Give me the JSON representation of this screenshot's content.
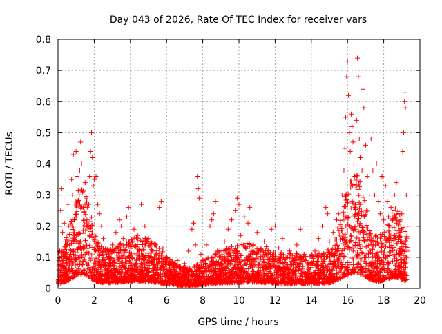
{
  "chart_data": {
    "type": "scatter",
    "title": "Day 043 of 2026, Rate Of TEC Index for receiver vars",
    "xlabel": "GPS time / hours",
    "ylabel": "ROTI / TECUs",
    "xlim": [
      0,
      20
    ],
    "ylim": [
      0,
      0.8
    ],
    "xticks": [
      0,
      2,
      4,
      6,
      8,
      10,
      12,
      14,
      16,
      18,
      20
    ],
    "yticks": [
      0,
      0.1,
      0.2,
      0.3,
      0.4,
      0.5,
      0.6,
      0.7,
      0.8
    ],
    "xtick_labels": [
      "0",
      "2",
      "4",
      "6",
      "8",
      "10",
      "12",
      "14",
      "16",
      "18",
      "20"
    ],
    "ytick_labels": [
      "0",
      "0.1",
      "0.2",
      "0.3",
      "0.4",
      "0.5",
      "0.6",
      "0.7",
      "0.8"
    ],
    "grid": true,
    "marker": "+",
    "series_color": "#ff0000",
    "data_end_hour": 19.3,
    "series": [
      {
        "name": "ROTI",
        "points": [
          [
            0.05,
            0.06
          ],
          [
            0.1,
            0.12
          ],
          [
            0.15,
            0.25
          ],
          [
            0.2,
            0.32
          ],
          [
            0.25,
            0.18
          ],
          [
            0.3,
            0.09
          ],
          [
            0.35,
            0.21
          ],
          [
            0.4,
            0.15
          ],
          [
            0.5,
            0.08
          ],
          [
            0.55,
            0.27
          ],
          [
            0.6,
            0.2
          ],
          [
            0.7,
            0.11
          ],
          [
            0.75,
            0.35
          ],
          [
            0.8,
            0.3
          ],
          [
            0.85,
            0.43
          ],
          [
            0.9,
            0.22
          ],
          [
            1.0,
            0.44
          ],
          [
            1.05,
            0.36
          ],
          [
            1.1,
            0.28
          ],
          [
            1.15,
            0.18
          ],
          [
            1.2,
            0.38
          ],
          [
            1.25,
            0.47
          ],
          [
            1.3,
            0.4
          ],
          [
            1.35,
            0.31
          ],
          [
            1.4,
            0.26
          ],
          [
            1.5,
            0.34
          ],
          [
            1.55,
            0.29
          ],
          [
            1.6,
            0.22
          ],
          [
            1.7,
            0.27
          ],
          [
            1.75,
            0.36
          ],
          [
            1.8,
            0.44
          ],
          [
            1.85,
            0.5
          ],
          [
            1.9,
            0.42
          ],
          [
            1.95,
            0.33
          ],
          [
            2.0,
            0.35
          ],
          [
            2.05,
            0.3
          ],
          [
            2.1,
            0.36
          ],
          [
            2.2,
            0.27
          ],
          [
            2.3,
            0.24
          ],
          [
            2.4,
            0.2
          ],
          [
            2.5,
            0.16
          ],
          [
            2.6,
            0.12
          ],
          [
            2.8,
            0.1
          ],
          [
            3.0,
            0.14
          ],
          [
            3.2,
            0.18
          ],
          [
            3.4,
            0.22
          ],
          [
            3.5,
            0.2
          ],
          [
            3.6,
            0.16
          ],
          [
            3.8,
            0.23
          ],
          [
            3.9,
            0.26
          ],
          [
            4.0,
            0.14
          ],
          [
            4.2,
            0.19
          ],
          [
            4.4,
            0.17
          ],
          [
            4.6,
            0.27
          ],
          [
            4.8,
            0.2
          ],
          [
            5.0,
            0.16
          ],
          [
            5.2,
            0.12
          ],
          [
            5.4,
            0.14
          ],
          [
            5.6,
            0.26
          ],
          [
            5.7,
            0.28
          ],
          [
            5.8,
            0.13
          ],
          [
            6.0,
            0.1
          ],
          [
            6.2,
            0.08
          ],
          [
            6.4,
            0.07
          ],
          [
            6.6,
            0.09
          ],
          [
            6.8,
            0.06
          ],
          [
            7.0,
            0.08
          ],
          [
            7.2,
            0.12
          ],
          [
            7.4,
            0.19
          ],
          [
            7.5,
            0.21
          ],
          [
            7.6,
            0.14
          ],
          [
            7.7,
            0.36
          ],
          [
            7.75,
            0.32
          ],
          [
            7.8,
            0.29
          ],
          [
            7.9,
            0.11
          ],
          [
            8.0,
            0.09
          ],
          [
            8.2,
            0.14
          ],
          [
            8.4,
            0.2
          ],
          [
            8.5,
            0.22
          ],
          [
            8.6,
            0.24
          ],
          [
            8.7,
            0.28
          ],
          [
            8.8,
            0.12
          ],
          [
            9.0,
            0.1
          ],
          [
            9.2,
            0.15
          ],
          [
            9.4,
            0.19
          ],
          [
            9.6,
            0.22
          ],
          [
            9.8,
            0.25
          ],
          [
            9.9,
            0.29
          ],
          [
            10.0,
            0.27
          ],
          [
            10.1,
            0.17
          ],
          [
            10.3,
            0.23
          ],
          [
            10.5,
            0.21
          ],
          [
            10.6,
            0.26
          ],
          [
            10.8,
            0.14
          ],
          [
            11.0,
            0.18
          ],
          [
            11.2,
            0.12
          ],
          [
            11.4,
            0.15
          ],
          [
            11.6,
            0.1
          ],
          [
            11.8,
            0.19
          ],
          [
            12.0,
            0.2
          ],
          [
            12.2,
            0.13
          ],
          [
            12.4,
            0.16
          ],
          [
            12.6,
            0.1
          ],
          [
            12.8,
            0.12
          ],
          [
            13.0,
            0.09
          ],
          [
            13.2,
            0.14
          ],
          [
            13.4,
            0.19
          ],
          [
            13.6,
            0.11
          ],
          [
            13.8,
            0.08
          ],
          [
            14.0,
            0.1
          ],
          [
            14.2,
            0.12
          ],
          [
            14.4,
            0.16
          ],
          [
            14.6,
            0.2
          ],
          [
            14.8,
            0.26
          ],
          [
            14.9,
            0.24
          ],
          [
            15.0,
            0.15
          ],
          [
            15.2,
            0.18
          ],
          [
            15.4,
            0.22
          ],
          [
            15.5,
            0.24
          ],
          [
            15.6,
            0.2
          ],
          [
            15.7,
            0.3
          ],
          [
            15.8,
            0.38
          ],
          [
            15.85,
            0.45
          ],
          [
            15.9,
            0.55
          ],
          [
            15.95,
            0.68
          ],
          [
            16.0,
            0.73
          ],
          [
            16.05,
            0.62
          ],
          [
            16.1,
            0.5
          ],
          [
            16.15,
            0.44
          ],
          [
            16.2,
            0.56
          ],
          [
            16.25,
            0.52
          ],
          [
            16.3,
            0.47
          ],
          [
            16.35,
            0.4
          ],
          [
            16.4,
            0.36
          ],
          [
            16.5,
            0.54
          ],
          [
            16.55,
            0.74
          ],
          [
            16.6,
            0.68
          ],
          [
            16.65,
            0.48
          ],
          [
            16.7,
            0.42
          ],
          [
            16.8,
            0.38
          ],
          [
            16.85,
            0.64
          ],
          [
            16.9,
            0.58
          ],
          [
            17.0,
            0.46
          ],
          [
            17.1,
            0.36
          ],
          [
            17.2,
            0.3
          ],
          [
            17.3,
            0.48
          ],
          [
            17.4,
            0.38
          ],
          [
            17.5,
            0.3
          ],
          [
            17.6,
            0.4
          ],
          [
            17.7,
            0.28
          ],
          [
            17.8,
            0.24
          ],
          [
            17.9,
            0.36
          ],
          [
            18.0,
            0.22
          ],
          [
            18.1,
            0.33
          ],
          [
            18.2,
            0.28
          ],
          [
            18.3,
            0.2
          ],
          [
            18.4,
            0.26
          ],
          [
            18.5,
            0.22
          ],
          [
            18.6,
            0.3
          ],
          [
            18.7,
            0.34
          ],
          [
            18.8,
            0.24
          ],
          [
            18.9,
            0.18
          ],
          [
            19.0,
            0.24
          ],
          [
            19.05,
            0.44
          ],
          [
            19.1,
            0.5
          ],
          [
            19.15,
            0.6
          ],
          [
            19.18,
            0.63
          ],
          [
            19.2,
            0.58
          ],
          [
            19.25,
            0.3
          ],
          [
            19.3,
            0.2
          ]
        ]
      }
    ]
  }
}
